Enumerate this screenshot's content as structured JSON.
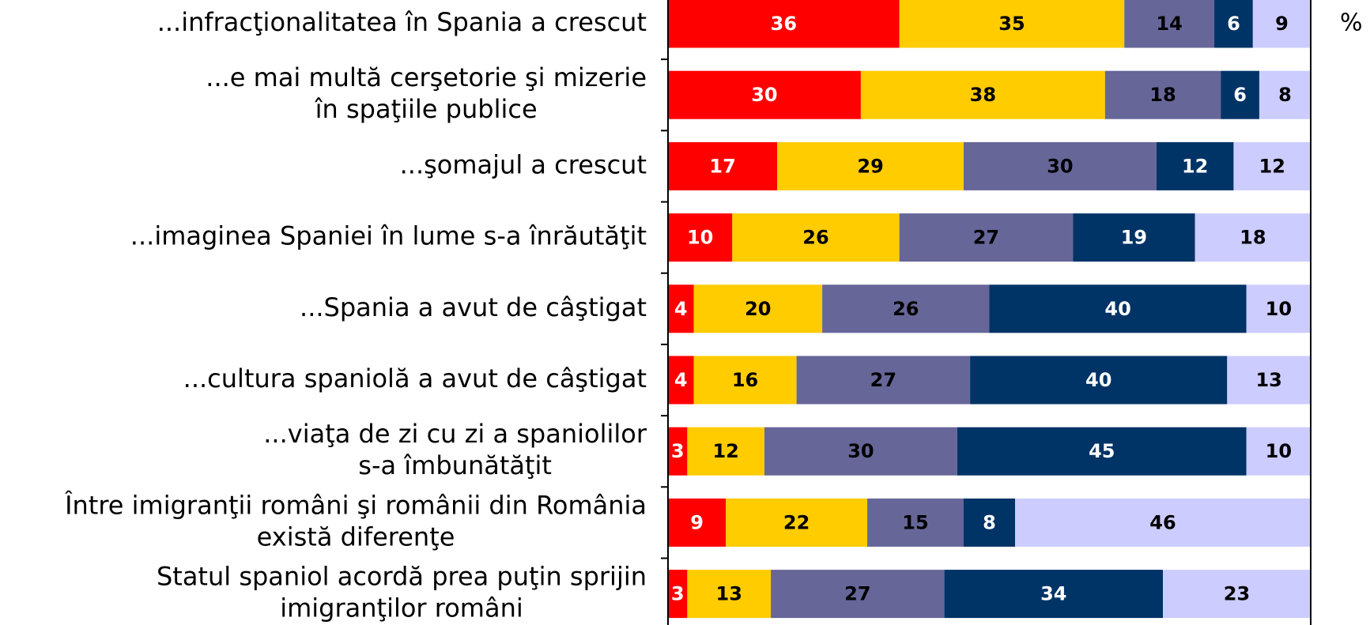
{
  "chart_data": {
    "type": "stacked-bar-horizontal",
    "unit": "%",
    "xlim": [
      0,
      100
    ],
    "categories": [
      [
        "...infracţionalitatea în Spania a crescut"
      ],
      [
        "...e mai multă cerşetorie şi mizerie",
        "în spaţiile publice"
      ],
      [
        "...şomajul a crescut"
      ],
      [
        "...imaginea Spaniei în lume s-a înrăutăţit"
      ],
      [
        "...Spania a avut de câştigat"
      ],
      [
        "...cultura spaniolă a avut de câştigat"
      ],
      [
        "...viaţa de zi cu zi a spaniolilor",
        "s-a îmbunătăţit"
      ],
      [
        "Între imigranţii români şi românii din România",
        "există diferenţe"
      ],
      [
        "Statul spaniol acordă prea puţin sprijin",
        "imigranţilor români"
      ]
    ],
    "series": [
      {
        "color": "#ff0000",
        "label_color": "#ffffff",
        "values": [
          36,
          30,
          17,
          10,
          4,
          4,
          3,
          9,
          3
        ]
      },
      {
        "color": "#ffcc00",
        "label_color": "#000000",
        "values": [
          35,
          38,
          29,
          26,
          20,
          16,
          12,
          22,
          13
        ]
      },
      {
        "color": "#666699",
        "label_color": "#000000",
        "values": [
          14,
          18,
          30,
          27,
          26,
          27,
          30,
          15,
          27
        ]
      },
      {
        "color": "#003366",
        "label_color": "#ffffff",
        "values": [
          6,
          6,
          12,
          19,
          40,
          40,
          45,
          8,
          34
        ]
      },
      {
        "color": "#ccccff",
        "label_color": "#000000",
        "values": [
          9,
          8,
          12,
          18,
          10,
          13,
          10,
          46,
          23
        ]
      }
    ]
  }
}
